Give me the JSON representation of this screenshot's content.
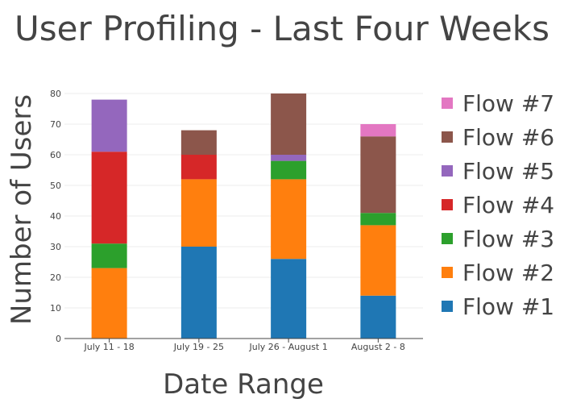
{
  "chart_data": {
    "type": "bar",
    "barmode": "stack",
    "title": "User Profiling - Last Four Weeks",
    "xlabel": "Date Range",
    "ylabel": "Number of Users",
    "categories": [
      "July 11 - 18",
      "July 19 - 25",
      "July 26 - August 1",
      "August 2 - 8"
    ],
    "ylim": [
      0,
      80
    ],
    "yticks": [
      0,
      10,
      20,
      30,
      40,
      50,
      60,
      70,
      80
    ],
    "grid": true,
    "legend_position": "right",
    "series": [
      {
        "name": "Flow #1",
        "color": "#1f77b4",
        "values": [
          0,
          30,
          26,
          14
        ]
      },
      {
        "name": "Flow #2",
        "color": "#ff7f0e",
        "values": [
          23,
          22,
          26,
          23
        ]
      },
      {
        "name": "Flow #3",
        "color": "#2ca02c",
        "values": [
          8,
          0,
          6,
          4
        ]
      },
      {
        "name": "Flow #4",
        "color": "#d62728",
        "values": [
          30,
          8,
          0,
          0
        ]
      },
      {
        "name": "Flow #5",
        "color": "#9467bd",
        "values": [
          17,
          0,
          2,
          0
        ]
      },
      {
        "name": "Flow #6",
        "color": "#8c564b",
        "values": [
          0,
          8,
          20,
          25
        ]
      },
      {
        "name": "Flow #7",
        "color": "#e377c2",
        "values": [
          0,
          0,
          0,
          4
        ]
      }
    ]
  }
}
